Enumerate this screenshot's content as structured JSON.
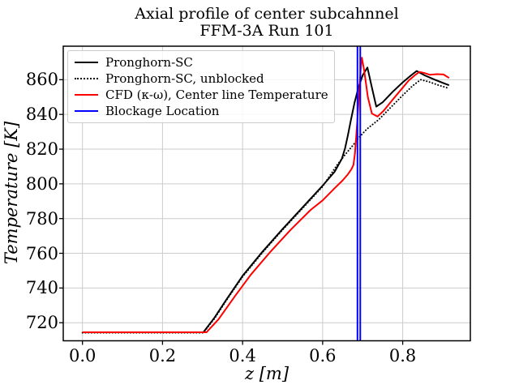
{
  "chart_data": {
    "type": "line",
    "title": "Axial profile of center subcahnnel",
    "subtitle": "FFM-3A Run 101",
    "xlabel": "z [m]",
    "ylabel": "Temperature [K]",
    "xlim": [
      -0.048,
      0.969
    ],
    "ylim": [
      709.6,
      879.3
    ],
    "grid": true,
    "grid_color": "#cccccc",
    "legend_position": "upper left",
    "x_tick_labels": [
      "0.0",
      "0.2",
      "0.4",
      "0.6",
      "0.8"
    ],
    "x_tick_values": [
      0,
      0.2,
      0.4,
      0.6,
      0.8
    ],
    "y_ticks": [
      720,
      740,
      760,
      780,
      800,
      820,
      840,
      860
    ],
    "series": [
      {
        "name": "Pronghorn-SC",
        "color": "#000000",
        "style": "solid",
        "x": [
          0.0,
          0.302,
          0.33,
          0.36,
          0.4,
          0.45,
          0.5,
          0.55,
          0.6,
          0.63,
          0.648,
          0.656,
          0.663,
          0.67,
          0.68,
          0.69,
          0.7,
          0.712,
          0.722,
          0.734,
          0.75,
          0.775,
          0.8,
          0.818,
          0.835,
          0.855,
          0.88,
          0.9,
          0.916
        ],
        "y": [
          714.5,
          714.5,
          723,
          733.5,
          747,
          761,
          774,
          786.5,
          799,
          807,
          814.5,
          820.5,
          828,
          836,
          847,
          856,
          862.5,
          867,
          856.5,
          844.5,
          847,
          853,
          858.5,
          862,
          865,
          862.5,
          860,
          858.2,
          856.8
        ]
      },
      {
        "name": "Pronghorn-SC, unblocked",
        "color": "#000000",
        "style": "dotted",
        "x": [
          0.0,
          0.302,
          0.33,
          0.36,
          0.4,
          0.45,
          0.5,
          0.55,
          0.6,
          0.635,
          0.655,
          0.675,
          0.69,
          0.71,
          0.74,
          0.77,
          0.8,
          0.825,
          0.845,
          0.865,
          0.89,
          0.916
        ],
        "y": [
          714.2,
          714.2,
          722.5,
          733,
          746.5,
          760.5,
          773.5,
          786,
          798.5,
          810.5,
          816.5,
          822,
          826.5,
          831.5,
          837,
          844,
          851,
          856.5,
          860,
          858.8,
          856.8,
          855
        ]
      },
      {
        "name": "CFD (κ-ω), Center line Temperature",
        "color": "#ff0000",
        "style": "solid",
        "x": [
          0.0,
          0.31,
          0.34,
          0.38,
          0.42,
          0.47,
          0.52,
          0.57,
          0.6,
          0.63,
          0.65,
          0.663,
          0.672,
          0.677,
          0.681,
          0.686,
          0.691,
          0.695,
          0.698,
          0.704,
          0.713,
          0.723,
          0.737,
          0.752,
          0.775,
          0.795,
          0.815,
          0.83,
          0.842,
          0.855,
          0.868,
          0.885,
          0.902,
          0.916
        ],
        "y": [
          714.5,
          714.5,
          722,
          735,
          747.5,
          761,
          773.5,
          785,
          790.5,
          797.5,
          802,
          805.5,
          808.5,
          811,
          818,
          834,
          852,
          866,
          872.7,
          865,
          850,
          840.5,
          838.8,
          842,
          848.5,
          854,
          859.5,
          862.5,
          864.5,
          863.8,
          862.8,
          863.2,
          863,
          861
        ]
      }
    ],
    "vlines": {
      "name": "Blockage Location",
      "color": "#0000ff",
      "x": [
        0.687,
        0.694
      ]
    }
  }
}
